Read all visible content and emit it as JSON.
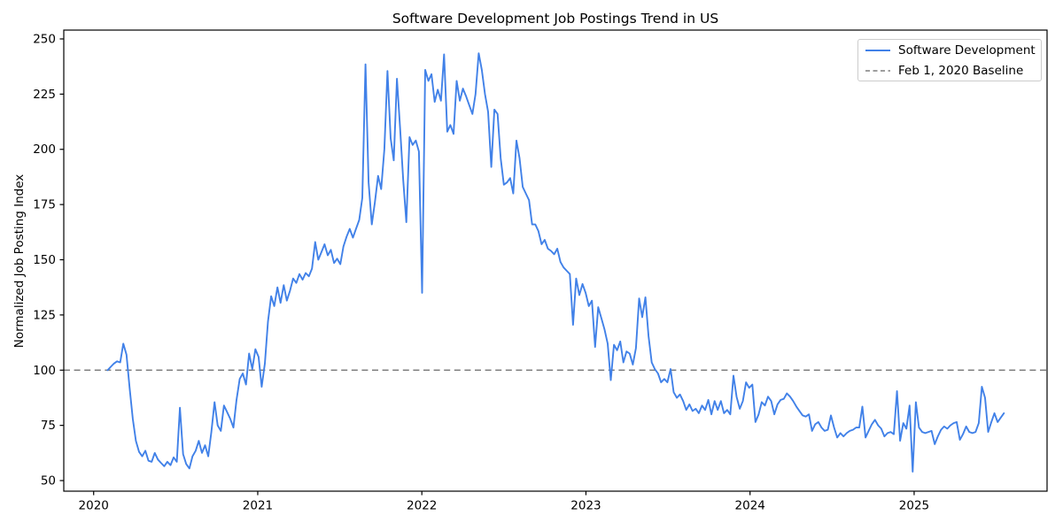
{
  "figure": {
    "background": "#ffffff",
    "spine_color": "#000000"
  },
  "chart_data": {
    "type": "line",
    "title": "Software Development Job Postings Trend in US",
    "xlabel": "",
    "ylabel": "Normalized Job Posting Index",
    "grid": false,
    "legend_position": "upper right",
    "xlim": [
      2019.818,
      2025.81
    ],
    "ylim": [
      45.2,
      254
    ],
    "x_ticks": [
      2020,
      2021,
      2022,
      2023,
      2024,
      2025
    ],
    "y_ticks": [
      50,
      75,
      100,
      125,
      150,
      175,
      200,
      225,
      250
    ],
    "baseline": {
      "label": "Feb 1, 2020 Baseline",
      "value": 100,
      "color": "#7f7f7f",
      "style": "dashed"
    },
    "series": [
      {
        "name": "Software Development",
        "color": "#4181e8",
        "x_start": 2020.085,
        "x_step_years": 0.019165,
        "values": [
          100,
          101.5,
          103,
          104,
          103.5,
          112,
          107,
          92,
          78,
          68,
          63,
          61,
          63.5,
          59,
          58.5,
          62.5,
          59.5,
          58,
          56.5,
          58.5,
          57,
          60.5,
          58.5,
          83,
          62,
          57.5,
          55.5,
          61,
          63.5,
          68,
          62.5,
          66,
          61,
          72,
          85.5,
          75,
          72.5,
          84,
          81,
          78,
          74,
          86.5,
          96,
          98.5,
          93.5,
          107.5,
          100.5,
          109.5,
          106,
          92.5,
          103,
          122,
          133.5,
          129,
          137.5,
          130.5,
          138.5,
          131.5,
          136,
          141.5,
          139.5,
          143.5,
          141,
          144,
          142.5,
          146,
          158,
          150,
          153.5,
          157,
          152,
          154.5,
          148.5,
          150.5,
          148,
          156,
          160.5,
          164,
          160,
          164,
          168,
          178,
          238.5,
          185,
          166,
          176,
          188,
          182,
          200,
          235.5,
          205,
          195,
          232,
          210,
          186,
          167,
          205.5,
          202,
          204,
          199,
          135,
          236,
          231,
          234,
          221.5,
          227,
          222,
          243,
          208,
          211,
          207,
          231,
          222,
          227.5,
          224,
          220,
          216,
          225,
          243.5,
          236,
          225,
          217,
          192,
          218,
          216,
          196,
          184,
          185,
          187,
          180,
          204,
          196,
          183,
          180,
          177,
          166,
          166,
          163,
          157,
          159,
          155,
          154,
          152.5,
          155,
          149,
          146.5,
          145,
          143.5,
          120.5,
          141.5,
          134,
          139,
          135,
          129,
          131.5,
          110.5,
          128.5,
          123.5,
          118.5,
          112,
          95.5,
          111.5,
          109,
          113,
          103.5,
          108.5,
          107.5,
          102.5,
          110,
          132.5,
          124,
          133,
          115.5,
          103.5,
          100.5,
          98.5,
          94.5,
          96,
          94.5,
          100.5,
          90,
          87.5,
          89,
          86,
          82,
          84.5,
          81.5,
          82.5,
          80.5,
          84,
          82,
          86.5,
          80,
          86,
          82,
          86,
          80.5,
          82,
          80,
          97.5,
          88,
          82.5,
          86,
          94.5,
          92,
          93.5,
          76.5,
          80,
          85.5,
          84,
          88,
          86,
          80,
          84.5,
          86.5,
          87,
          89.5,
          88,
          86,
          83.5,
          81.5,
          79.5,
          79,
          80,
          72.5,
          75.5,
          76.5,
          74,
          72.5,
          73,
          79.5,
          74,
          69.5,
          71.5,
          70,
          71.5,
          72.5,
          73,
          74,
          74,
          83.5,
          69.5,
          72.5,
          75.5,
          77.5,
          75,
          73.5,
          70,
          71.5,
          72,
          71,
          90.5,
          68,
          76,
          73.5,
          84,
          54,
          85.5,
          74,
          72,
          71.5,
          72,
          72.5,
          66.5,
          70,
          73,
          74.5,
          73.5,
          75,
          76,
          76.5,
          68.5,
          71,
          74.5,
          72,
          71.5,
          72,
          76,
          92.5,
          87.5,
          72,
          76.5,
          80.5,
          76.5,
          78.5,
          80.5
        ]
      }
    ]
  }
}
